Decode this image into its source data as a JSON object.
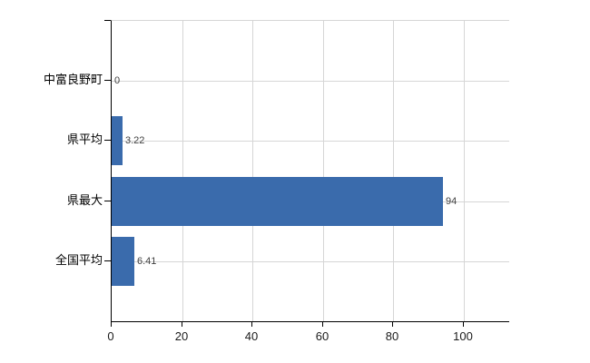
{
  "chart_data": {
    "type": "bar",
    "orientation": "horizontal",
    "title": "",
    "xlabel": "",
    "ylabel": "",
    "categories": [
      "中富良野町",
      "県平均",
      "県最大",
      "全国平均"
    ],
    "values": [
      0,
      3.22,
      94,
      6.41
    ],
    "value_labels": [
      "0",
      "3.22",
      "94",
      "6.41"
    ],
    "x_ticks": [
      0,
      20,
      40,
      60,
      80,
      100
    ],
    "x_tick_labels": [
      "0",
      "20",
      "40",
      "60",
      "80",
      "100"
    ],
    "xlim": [
      0,
      113
    ],
    "grid": true,
    "legend": false,
    "colors": {
      "bar": "#3a6bac",
      "axis": "#000000",
      "gridline": "#d6d6d6",
      "category_label": "#000000",
      "tick_label": "#1a1a1a",
      "value_label": "#404040",
      "background": "#ffffff"
    }
  }
}
